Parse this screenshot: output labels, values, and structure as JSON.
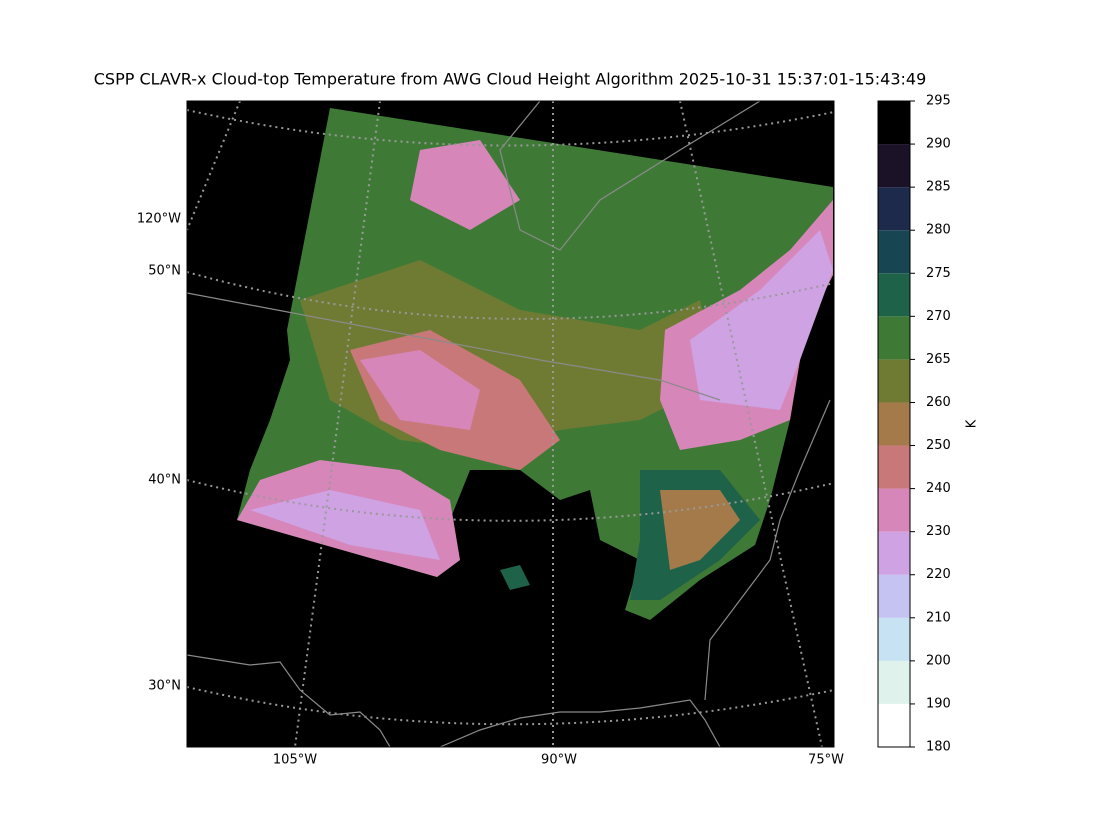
{
  "title": "CSPP CLAVR-x Cloud-top Temperature from AWG Cloud Height Algorithm 2025-10-31 15:37:01-15:43:49",
  "map": {
    "meridian_labels": [
      "120°W",
      "105°W",
      "90°W",
      "75°W"
    ],
    "parallel_labels": [
      "50°N",
      "40°N",
      "30°N"
    ]
  },
  "colorbar": {
    "label": "K",
    "ticks": [
      180,
      190,
      200,
      210,
      220,
      230,
      240,
      250,
      260,
      265,
      270,
      275,
      280,
      285,
      290,
      295
    ],
    "colors": [
      "#ffffff",
      "#dff3ec",
      "#c7e2f2",
      "#c4c3f2",
      "#cfa2e4",
      "#d786b9",
      "#c87878",
      "#a57a4b",
      "#6f7b33",
      "#3e7a36",
      "#1e6249",
      "#184552",
      "#1e2a4b",
      "#1c1228",
      "#000000"
    ]
  }
}
